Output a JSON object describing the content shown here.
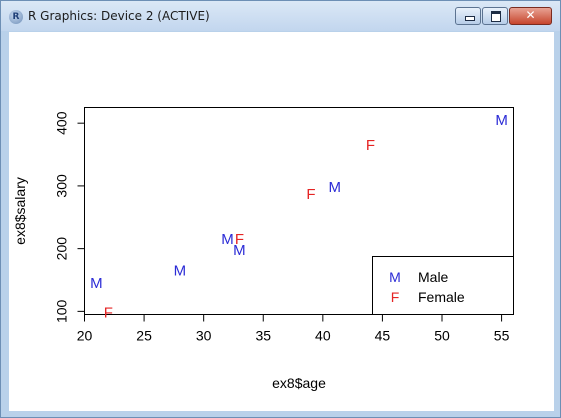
{
  "window": {
    "app_icon_letter": "R",
    "title": "R Graphics: Device 2 (ACTIVE)",
    "buttons": {
      "minimize": "minimize",
      "maximize": "maximize",
      "close": "✕"
    }
  },
  "chart_data": {
    "type": "scatter",
    "title": "",
    "xlabel": "ex8$age",
    "ylabel": "ex8$salary",
    "xlim": [
      20,
      56
    ],
    "ylim": [
      95,
      425
    ],
    "xticks": [
      20,
      25,
      30,
      35,
      40,
      45,
      50,
      55
    ],
    "yticks": [
      100,
      200,
      300,
      400
    ],
    "grid": false,
    "legend_placement": "bottom-right",
    "colors": {
      "Male": "#2b2bd6",
      "Female": "#e52424"
    },
    "series": [
      {
        "name": "Male",
        "symbol": "M",
        "points": [
          {
            "x": 21,
            "y": 145
          },
          {
            "x": 28,
            "y": 165
          },
          {
            "x": 32,
            "y": 215
          },
          {
            "x": 33,
            "y": 198
          },
          {
            "x": 41,
            "y": 298
          },
          {
            "x": 55,
            "y": 405
          }
        ]
      },
      {
        "name": "Female",
        "symbol": "F",
        "points": [
          {
            "x": 22,
            "y": 98
          },
          {
            "x": 33,
            "y": 215
          },
          {
            "x": 39,
            "y": 287
          },
          {
            "x": 44,
            "y": 365
          }
        ]
      }
    ],
    "legend": [
      {
        "symbol": "M",
        "label": "Male"
      },
      {
        "symbol": "F",
        "label": "Female"
      }
    ]
  }
}
